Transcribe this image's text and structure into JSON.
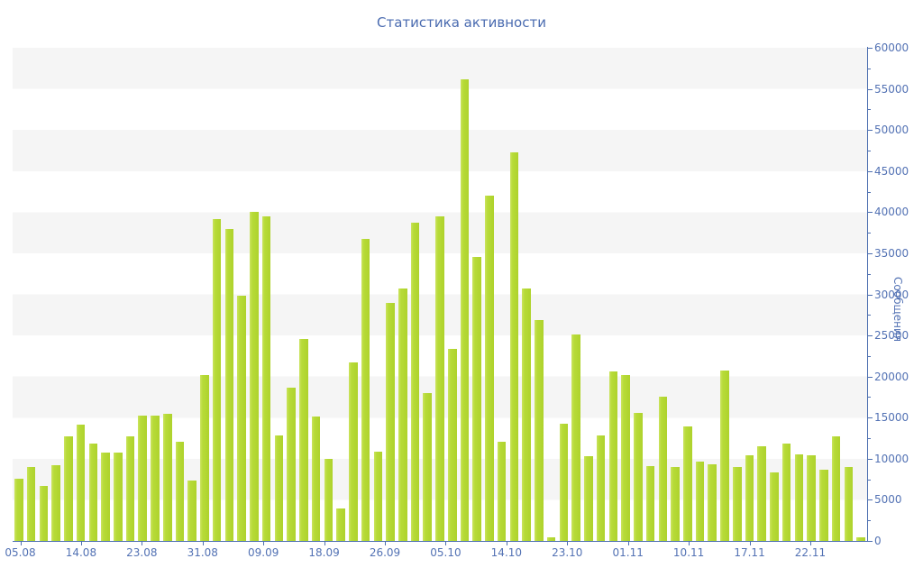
{
  "title": "Статистика активности",
  "y_axis": {
    "title": "Сообщения",
    "min": 0,
    "max": 60000,
    "major_step": 5000,
    "minor_step": 2500,
    "tick_labels": [
      "0",
      "5000",
      "10000",
      "15000",
      "20000",
      "25000",
      "30000",
      "35000",
      "40000",
      "45000",
      "50000",
      "55000",
      "60000"
    ]
  },
  "x_axis": {
    "tick_labels": [
      "05.08",
      "14.08",
      "23.08",
      "31.08",
      "09.09",
      "18.09",
      "26.09",
      "05.10",
      "14.10",
      "23.10",
      "01.11",
      "10.11",
      "17.11",
      "22.11"
    ]
  },
  "colors": {
    "bar": "#aed22c",
    "bar_highlight": "#cbe35f",
    "axis": "#4d6fb0",
    "label_text": "#5372b4",
    "title_text": "#4a6bb0",
    "stripe": "#f5f5f5",
    "background": "#ffffff"
  },
  "chart_data": {
    "type": "bar",
    "title": "Статистика активности",
    "xlabel": "",
    "ylabel": "Сообщения",
    "ylim": [
      0,
      60000
    ],
    "grid": "horizontal striped bands, no gridlines",
    "legend": "none",
    "axis_position": "right",
    "x_tick_labels": [
      "05.08",
      "14.08",
      "23.08",
      "31.08",
      "09.09",
      "18.09",
      "26.09",
      "05.10",
      "14.10",
      "23.10",
      "01.11",
      "10.11",
      "17.11",
      "22.11"
    ],
    "values": [
      7600,
      9000,
      6700,
      9200,
      12700,
      14100,
      11800,
      10700,
      10700,
      12700,
      15200,
      15200,
      15500,
      12100,
      7400,
      20200,
      39200,
      38000,
      29800,
      40000,
      39500,
      12800,
      18600,
      24600,
      15100,
      10000,
      3900,
      21700,
      36700,
      10900,
      29000,
      30700,
      38700,
      18000,
      39500,
      23400,
      56200,
      34500,
      42000,
      12100,
      47300,
      30700,
      26900,
      400,
      14300,
      25100,
      10300,
      12800,
      20600,
      20200,
      15600,
      9100,
      17600,
      9000,
      13900,
      9700,
      9300,
      20700,
      9000,
      10400,
      11500,
      8300,
      11800,
      10500,
      10400,
      8700,
      12700,
      9000,
      400
    ]
  }
}
